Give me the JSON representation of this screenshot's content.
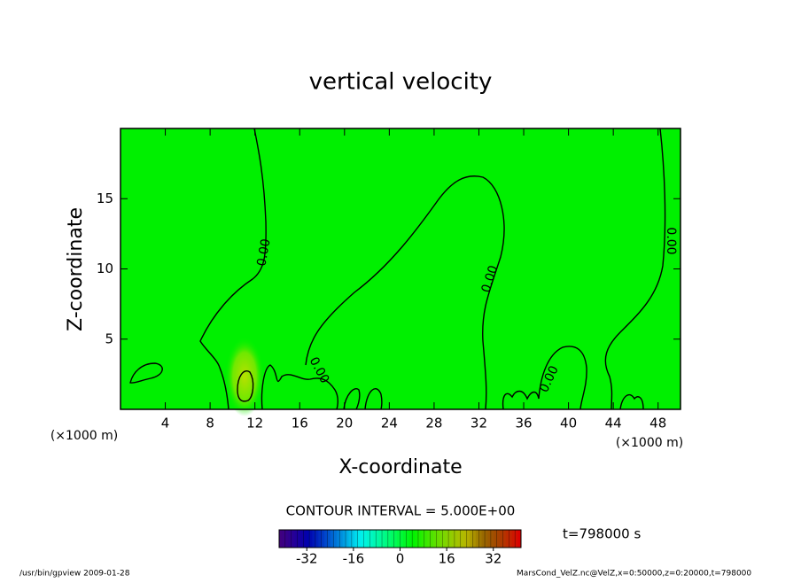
{
  "chart_data": {
    "type": "contour",
    "title": "vertical velocity",
    "x_label": "X-coordinate",
    "y_label": "Z-coordinate",
    "x_unit_left": "(×1000 m)",
    "x_unit_right": "(×1000 m)",
    "xlim": [
      0,
      50
    ],
    "ylim": [
      0,
      20
    ],
    "xticks": [
      4,
      8,
      12,
      16,
      20,
      24,
      28,
      32,
      36,
      40,
      44,
      48
    ],
    "yticks": [
      5,
      10,
      15
    ],
    "contour_labels": [
      "0.00",
      "0.00",
      "0.00",
      "0.00",
      "0.00"
    ],
    "contour_interval": "CONTOUR INTERVAL = 5.000E+00",
    "colorbar_lim": [
      -41.5,
      41.5
    ],
    "colorbar_ticks": [
      -32,
      -16,
      0,
      16,
      32
    ],
    "time_label": "t=798000 s",
    "footer_left": "/usr/bin/gpview   2009-01-28",
    "footer_right": "MarsCond_VelZ.nc@VelZ,x=0:50000,z=0:20000,t=798000"
  }
}
